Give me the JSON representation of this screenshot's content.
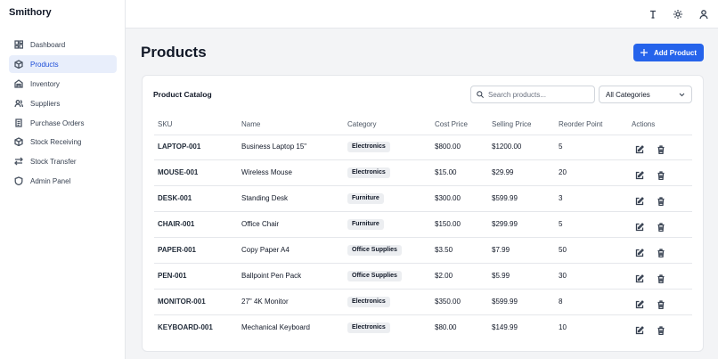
{
  "sidebar": {
    "brand": "Smithory",
    "nav": [
      "Dashboard",
      "Products",
      "Inventory",
      "Suppliers",
      "Purchase Orders",
      "Stock Receiving",
      "Stock Transfer",
      "Admin Panel"
    ]
  },
  "header": {
    "title": "Products",
    "button": "Add Product"
  },
  "catalog": {
    "title": "Product Catalog",
    "search_placeholder": "Search products...",
    "filter": "All Categories"
  },
  "table": {
    "columns": [
      "SKU",
      "Name",
      "Category",
      "Cost Price",
      "Selling Price",
      "Reorder Point",
      "Actions"
    ],
    "rows": [
      [
        "LAPTOP-001",
        "Business Laptop 15\"",
        "Electronics",
        "$800.00",
        "$1200.00",
        5
      ],
      [
        "MOUSE-001",
        "Wireless Mouse",
        "Electronics",
        "$15.00",
        "$29.99",
        20
      ],
      [
        "DESK-001",
        "Standing Desk",
        "Furniture",
        "$300.00",
        "$599.99",
        3
      ],
      [
        "CHAIR-001",
        "Office Chair",
        "Furniture",
        "$150.00",
        "$299.99",
        5
      ],
      [
        "PAPER-001",
        "Copy Paper A4",
        "Office Supplies",
        "$3.50",
        "$7.99",
        50
      ],
      [
        "PEN-001",
        "Ballpoint Pen Pack",
        "Office Supplies",
        "$2.00",
        "$5.99",
        30
      ],
      [
        "MONITOR-001",
        "27\" 4K Monitor",
        "Electronics",
        "$350.00",
        "$599.99",
        8
      ],
      [
        "KEYBOARD-001",
        "Mechanical Keyboard",
        "Electronics",
        "$80.00",
        "$149.99",
        10
      ]
    ]
  }
}
